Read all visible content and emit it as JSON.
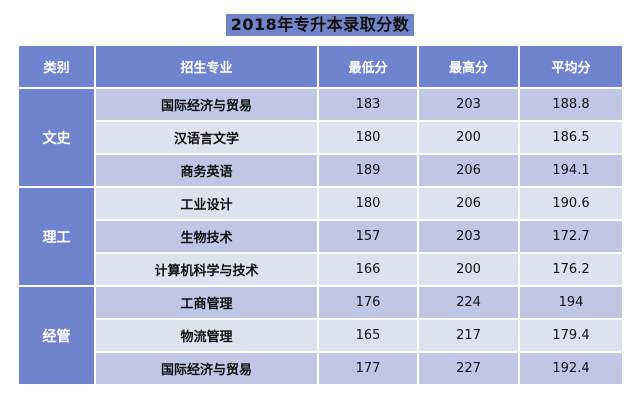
{
  "title": "2018年专升本录取分数",
  "headers": {
    "category": "类别",
    "major": "招生专业",
    "min": "最低分",
    "max": "最高分",
    "avg": "平均分"
  },
  "groups": [
    {
      "category": "文史",
      "rows": [
        {
          "major": "国际经济与贸易",
          "min": "183",
          "max": "203",
          "avg": "188.8"
        },
        {
          "major": "汉语言文学",
          "min": "180",
          "max": "200",
          "avg": "186.5"
        },
        {
          "major": "商务英语",
          "min": "189",
          "max": "206",
          "avg": "194.1"
        }
      ]
    },
    {
      "category": "理工",
      "rows": [
        {
          "major": "工业设计",
          "min": "180",
          "max": "206",
          "avg": "190.6"
        },
        {
          "major": "生物技术",
          "min": "157",
          "max": "203",
          "avg": "172.7"
        },
        {
          "major": "计算机科学与技术",
          "min": "166",
          "max": "200",
          "avg": "176.2"
        }
      ]
    },
    {
      "category": "经管",
      "rows": [
        {
          "major": "工商管理",
          "min": "176",
          "max": "224",
          "avg": "194"
        },
        {
          "major": "物流管理",
          "min": "165",
          "max": "217",
          "avg": "179.4"
        },
        {
          "major": "国际经济与贸易",
          "min": "177",
          "max": "227",
          "avg": "192.4"
        }
      ]
    }
  ]
}
